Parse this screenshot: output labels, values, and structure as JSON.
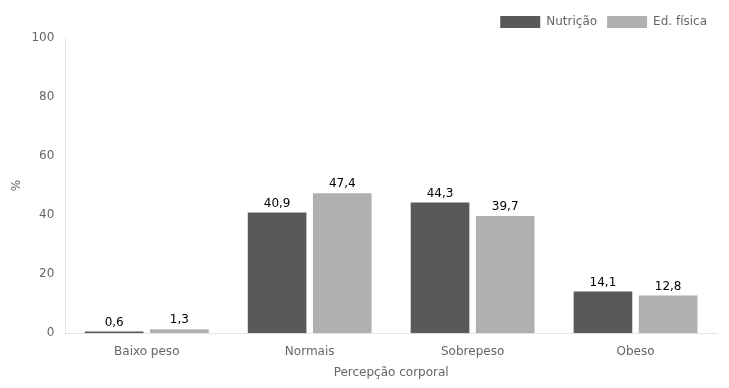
{
  "chart_data": {
    "type": "bar",
    "categories": [
      "Baixo peso",
      "Normais",
      "Sobrepeso",
      "Obeso"
    ],
    "series": [
      {
        "name": "Nutrição",
        "color": "#595959",
        "values": [
          0.6,
          40.9,
          44.3,
          14.1
        ],
        "value_labels": [
          "0,6",
          "40,9",
          "44,3",
          "14,1"
        ]
      },
      {
        "name": "Ed. física",
        "color": "#b0b0b0",
        "values": [
          1.3,
          47.4,
          39.7,
          12.8
        ],
        "value_labels": [
          "1,3",
          "47,4",
          "39,7",
          "12,8"
        ]
      }
    ],
    "xlabel": "Percepção corporal",
    "ylabel": "%",
    "ylim": [
      0,
      100
    ],
    "yticks": [
      0,
      20,
      40,
      60,
      80,
      100
    ],
    "grid": false,
    "legend": "upper right",
    "data_labels": true
  }
}
